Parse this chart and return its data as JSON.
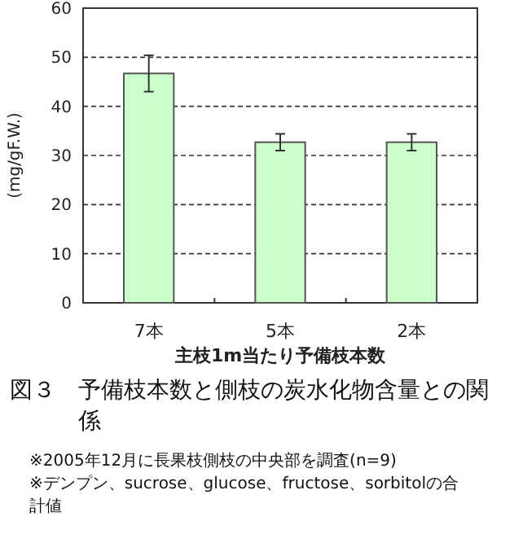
{
  "chart_data": {
    "type": "bar",
    "title": "図３　予備枝本数と側枝の炭水化物含量との関係",
    "xlabel": "主枝1m当たり予備枝本数",
    "ylabel": "(mg/gF.W.)",
    "categories": [
      "7本",
      "5本",
      "2本"
    ],
    "values": [
      46.7,
      32.7,
      32.7
    ],
    "errors": [
      3.7,
      1.7,
      1.7
    ],
    "color": "#ccffcc",
    "ylim": [
      0,
      60
    ],
    "yticks": [
      0,
      10,
      20,
      30,
      40,
      50,
      60
    ],
    "grid": "y",
    "annotations": [
      "※2005年12月に長果枝側枝の中央部を調査(n=9)",
      "※デンプン、sucrose、glucose、fructose、sorbitolの合計値"
    ]
  }
}
